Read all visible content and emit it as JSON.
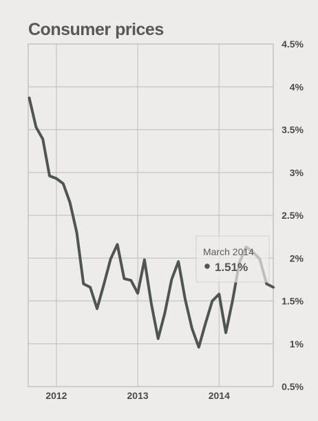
{
  "chart_data": {
    "type": "line",
    "title": "Consumer prices",
    "xlabel": "",
    "ylabel": "",
    "x_ticks": [
      "2012",
      "2013",
      "2014"
    ],
    "y_ticks": [
      "0.5%",
      "1%",
      "1.5%",
      "2%",
      "2.5%",
      "3%",
      "3.5%",
      "4%",
      "4.5%"
    ],
    "ylim": [
      0.5,
      4.5
    ],
    "grid": true,
    "series": [
      {
        "color": "#4f5651",
        "x": [
          "2011-09",
          "2011-10",
          "2011-11",
          "2011-12",
          "2012-01",
          "2012-02",
          "2012-03",
          "2012-04",
          "2012-05",
          "2012-06",
          "2012-07",
          "2012-08",
          "2012-09",
          "2012-10",
          "2012-11",
          "2012-12",
          "2013-01",
          "2013-02",
          "2013-03",
          "2013-04",
          "2013-05",
          "2013-06",
          "2013-07",
          "2013-08",
          "2013-09",
          "2013-10",
          "2013-11",
          "2013-12",
          "2014-01",
          "2014-02",
          "2014-03",
          "2014-04",
          "2014-05",
          "2014-06",
          "2014-07",
          "2014-08",
          "2014-09"
        ],
        "values": [
          3.87,
          3.53,
          3.39,
          2.96,
          2.93,
          2.87,
          2.65,
          2.3,
          1.7,
          1.66,
          1.41,
          1.69,
          1.99,
          2.16,
          1.76,
          1.74,
          1.59,
          1.98,
          1.47,
          1.06,
          1.36,
          1.75,
          1.96,
          1.52,
          1.18,
          0.96,
          1.24,
          1.5,
          1.58,
          1.13,
          1.51,
          1.95,
          2.13,
          2.07,
          1.99,
          1.7,
          1.66
        ]
      }
    ],
    "tooltip": {
      "date": "March 2014",
      "value": "1.51%"
    }
  }
}
